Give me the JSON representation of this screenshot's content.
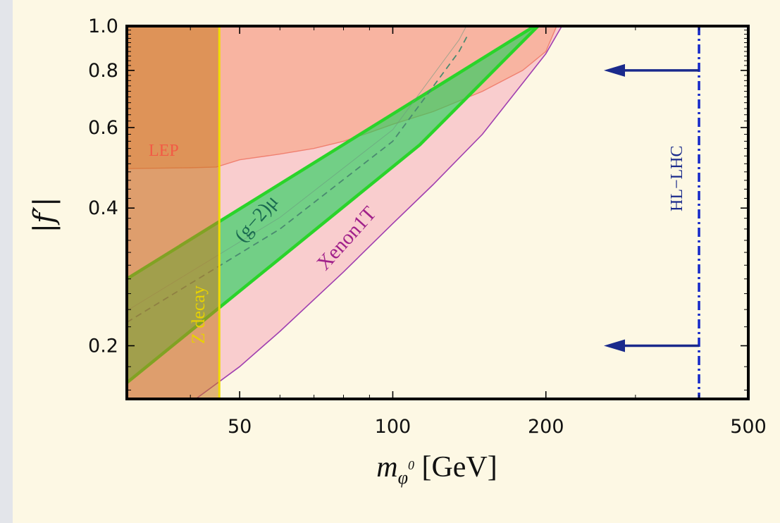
{
  "chart_data": {
    "type": "area",
    "xscale": "log",
    "yscale": "log",
    "xlim": [
      30,
      500
    ],
    "ylim": [
      0.153,
      1.0
    ],
    "xticks": [
      50,
      100,
      200,
      500
    ],
    "xtick_labels": [
      "50",
      "100",
      "200",
      "500"
    ],
    "yticks": [
      0.2,
      0.4,
      0.6,
      0.8,
      1.0
    ],
    "ytick_labels": [
      "0.2",
      "0.4",
      "0.6",
      "0.8",
      "1.0"
    ],
    "xlabel_main": "m",
    "xlabel_sub": "φ",
    "xlabel_sup": "0",
    "xlabel_units": " [GeV]",
    "ylabel": "|f′|",
    "regions": {
      "lep": {
        "label": "LEP",
        "color": "#f7a07c",
        "lower_boundary": [
          [
            30,
            0.488
          ],
          [
            40,
            0.49
          ],
          [
            45,
            0.492
          ],
          [
            50,
            0.51
          ],
          [
            60,
            0.525
          ],
          [
            70,
            0.54
          ],
          [
            80,
            0.56
          ],
          [
            90,
            0.585
          ],
          [
            100,
            0.61
          ],
          [
            120,
            0.65
          ],
          [
            150,
            0.72
          ],
          [
            180,
            0.8
          ],
          [
            200,
            0.88
          ],
          [
            210,
            1.0
          ]
        ]
      },
      "z_decay": {
        "label": "Z decay",
        "color": "#c8781e",
        "boundary_line_color": "#f0dc00",
        "x_max": 45.6
      },
      "g2mu": {
        "label": "(g−2)μ",
        "color": "#1fd05a",
        "upper_boundary": [
          [
            30,
            0.28
          ],
          [
            190,
            1.0
          ]
        ],
        "lower_boundary": [
          [
            30,
            0.166
          ],
          [
            113,
            0.55
          ],
          [
            193,
            1.0
          ]
        ],
        "central_dashed": [
          [
            30,
            0.225
          ],
          [
            60,
            0.36
          ],
          [
            100,
            0.56
          ],
          [
            135,
            0.88
          ],
          [
            140,
            0.95
          ]
        ]
      },
      "xenon1t": {
        "label": "Xenon1T",
        "color": "#f59ab4",
        "lower_boundary": [
          [
            30,
            0.118
          ],
          [
            40,
            0.15
          ],
          [
            50,
            0.18
          ],
          [
            60,
            0.215
          ],
          [
            80,
            0.29
          ],
          [
            100,
            0.37
          ],
          [
            120,
            0.45
          ],
          [
            150,
            0.58
          ],
          [
            180,
            0.75
          ],
          [
            200,
            0.87
          ],
          [
            215,
            1.0
          ]
        ]
      },
      "hl_lhc": {
        "label": "HL−LHC",
        "color": "#1428c8",
        "x": 400,
        "arrows_at_y": [
          0.8,
          0.2
        ],
        "arrow_tip_x": 260
      }
    }
  }
}
